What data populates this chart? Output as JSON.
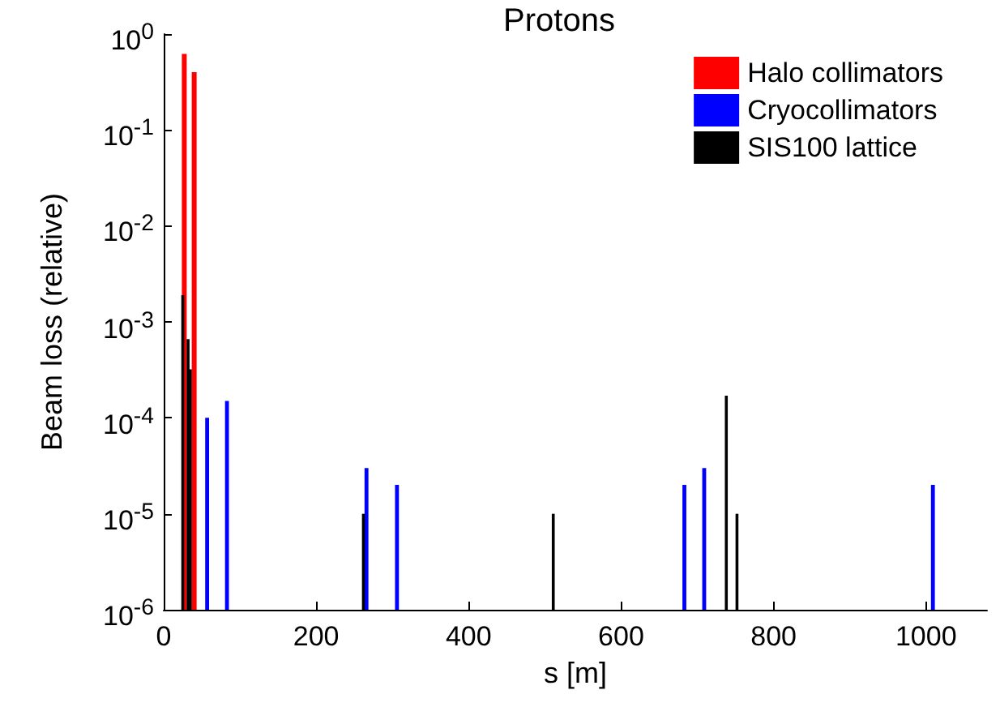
{
  "chart_data": {
    "type": "bar",
    "title": "Protons",
    "xlabel": "s [m]",
    "ylabel": "Beam loss (relative)",
    "series": [
      {
        "name": "Halo collimators",
        "color": "#ff0000",
        "x": [
          27,
          40
        ],
        "values": [
          0.62,
          0.4
        ]
      },
      {
        "name": "Cryocollimators",
        "color": "#0000ff",
        "x": [
          57,
          83,
          266,
          306,
          683,
          709,
          1009
        ],
        "values": [
          0.0001,
          0.00015,
          3e-05,
          2e-05,
          2e-05,
          3e-05,
          2e-05
        ]
      },
      {
        "name": "SIS100 lattice",
        "color": "#000000",
        "x": [
          25,
          32,
          35,
          262,
          511,
          738,
          752
        ],
        "values": [
          0.0019,
          0.00066,
          0.00032,
          1e-05,
          1e-05,
          0.00017,
          1e-05
        ]
      }
    ],
    "xlim": [
      0,
      1080
    ],
    "xticks": [
      0,
      200,
      400,
      600,
      800,
      1000
    ],
    "ylim": [
      1e-06,
      1
    ],
    "yticks": [
      {
        "value": 1e-06,
        "label": "10$^{-6}$"
      },
      {
        "value": 1e-05,
        "label": "10$^{-5}$"
      },
      {
        "value": 0.0001,
        "label": "10$^{-4}$"
      },
      {
        "value": 0.001,
        "label": "10$^{-3}$"
      },
      {
        "value": 0.01,
        "label": "10$^{-2}$"
      },
      {
        "value": 0.1,
        "label": "10$^{-1}$"
      },
      {
        "value": 1,
        "label": "10$^{0}$"
      }
    ],
    "log": "y",
    "grid": false,
    "legend": "top right"
  }
}
